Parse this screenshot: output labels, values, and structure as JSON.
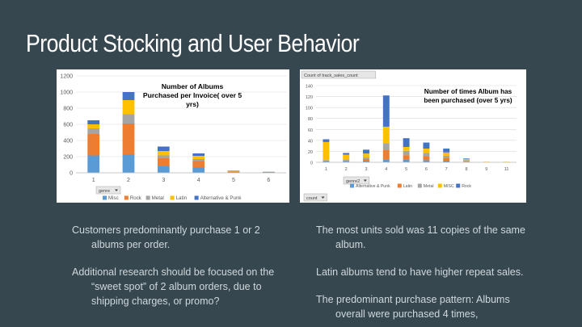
{
  "slide": {
    "title": "Product Stocking and User Behavior",
    "left_text": [
      {
        "line1": "Customers predominantly purchase 1 or 2",
        "line2": "albums per order.",
        "line3": ""
      },
      {
        "line1": "Additional research should be focused on the",
        "line2": "“sweet spot” of 2 album orders, due to",
        "line3": "shipping charges, or promo?"
      }
    ],
    "right_text": [
      {
        "line1": "The most units sold was 11 copies of the same",
        "line2": "album."
      },
      {
        "line1": "Latin albums tend to have higher repeat sales.",
        "line2": ""
      },
      {
        "line1": "The predominant purchase pattern: Albums",
        "line2": "overall were purchased 4 times,"
      }
    ]
  },
  "chart_data": [
    {
      "type": "bar",
      "stacked": true,
      "title": "Number of Albums Purchased per Invoice( over 5 yrs)",
      "title_lines": [
        "Number of Albums",
        "Purchased per Invoice( over 5",
        "yrs)"
      ],
      "filter_button": "genre",
      "categories": [
        "1",
        "2",
        "3",
        "4",
        "5",
        "6"
      ],
      "ylim": [
        0,
        1200
      ],
      "yticks": [
        "0",
        "200",
        "400",
        "600",
        "800",
        "1000",
        "1200"
      ],
      "series": [
        {
          "name": "Misc",
          "color": "#5b9bd5",
          "values": [
            215,
            225,
            80,
            65,
            5,
            3
          ]
        },
        {
          "name": "Rock",
          "color": "#ed7d31",
          "values": [
            265,
            385,
            100,
            80,
            10,
            5
          ]
        },
        {
          "name": "Metal",
          "color": "#a5a5a5",
          "values": [
            70,
            115,
            35,
            25,
            4,
            2
          ]
        },
        {
          "name": "Latin",
          "color": "#ffc000",
          "values": [
            50,
            175,
            55,
            40,
            3,
            1
          ]
        },
        {
          "name": "Alternative & Punk",
          "color": "#4472c4",
          "values": [
            50,
            100,
            55,
            30,
            4,
            1
          ]
        }
      ],
      "legend": "bottom"
    },
    {
      "type": "bar",
      "stacked": true,
      "title": "Number of times Album has been purchased (over 5 yrs)",
      "title_lines": [
        "Number of times Album has",
        "been purchased (over 5 yrs)"
      ],
      "filter_top": "Count of track_sales_count",
      "filter_button": "genre2",
      "filter_bottom": "count",
      "categories": [
        "1",
        "2",
        "3",
        "4",
        "5",
        "6",
        "7",
        "8",
        "9",
        "11"
      ],
      "ylim": [
        0,
        140
      ],
      "yticks": [
        "0",
        "20",
        "40",
        "60",
        "80",
        "100",
        "120",
        "140"
      ],
      "series": [
        {
          "name": "Alternative & Punk",
          "color": "#5b9bd5",
          "values": [
            2,
            2,
            3,
            5,
            5,
            4,
            3,
            1,
            0,
            0
          ]
        },
        {
          "name": "Latin",
          "color": "#ed7d31",
          "values": [
            1,
            1,
            3,
            18,
            8,
            7,
            5,
            1,
            0,
            0
          ]
        },
        {
          "name": "Metal",
          "color": "#a5a5a5",
          "values": [
            1,
            2,
            3,
            12,
            8,
            6,
            4,
            2,
            0,
            0
          ]
        },
        {
          "name": "MISC",
          "color": "#ffc000",
          "values": [
            33,
            9,
            7,
            30,
            7,
            8,
            6,
            2,
            1,
            1
          ]
        },
        {
          "name": "Rock",
          "color": "#4472c4",
          "values": [
            5,
            3,
            7,
            57,
            16,
            11,
            7,
            1,
            0,
            0
          ]
        }
      ],
      "legend": "bottom"
    }
  ]
}
